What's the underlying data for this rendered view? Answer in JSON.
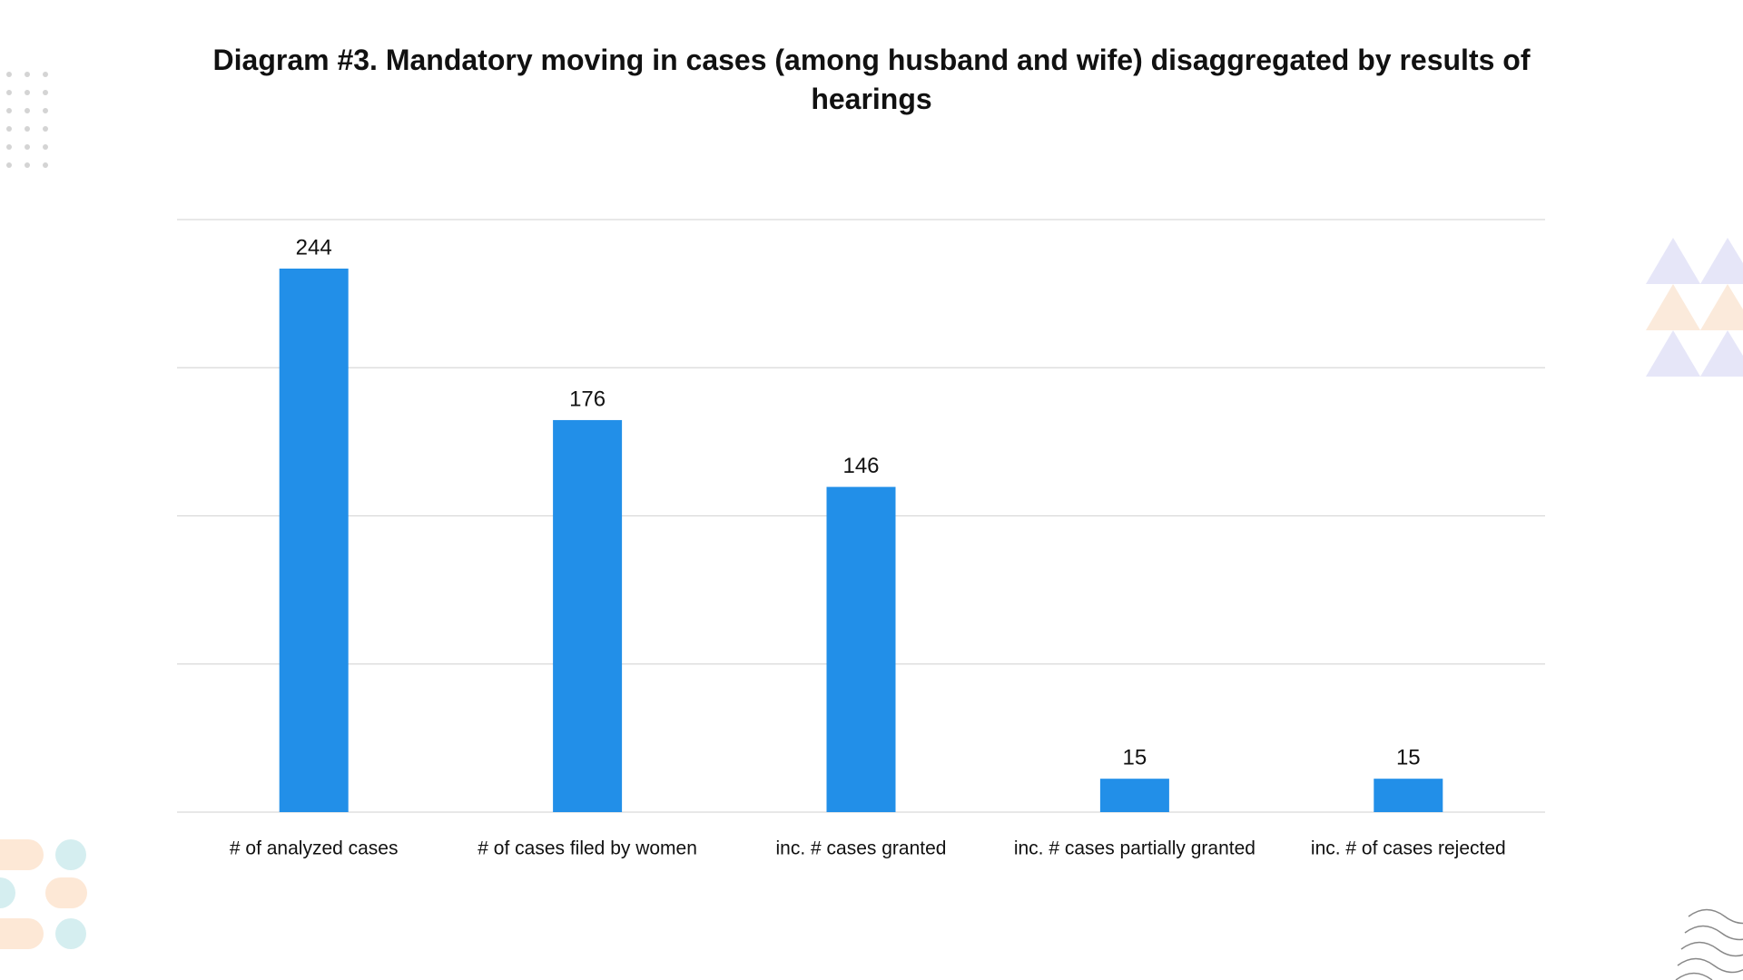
{
  "chart_data": {
    "type": "bar",
    "title": "Diagram #3. Mandatory moving in cases (among husband and wife) disaggregated by results of hearings",
    "categories": [
      "# of analyzed cases",
      "# of cases filed by women",
      "inc. # cases granted",
      "inc. # cases partially granted",
      "inc. #  of cases rejected"
    ],
    "values": [
      244,
      176,
      146,
      15,
      15
    ],
    "color": "#228fe8",
    "ylim": [
      0,
      266
    ],
    "yticks": [
      0,
      66.5,
      133,
      199.5,
      266
    ],
    "grid": true,
    "show_ytick_labels": false,
    "show_value_labels": true
  }
}
